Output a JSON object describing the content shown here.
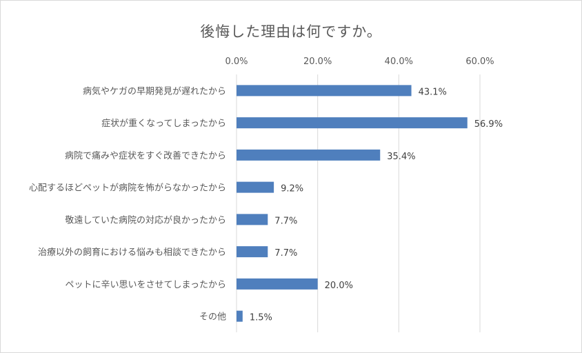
{
  "chart_data": {
    "type": "bar",
    "orientation": "horizontal",
    "title": "後悔した理由は何ですか。",
    "categories": [
      "病気やケガの早期発見が遅れたから",
      "症状が重くなってしまったから",
      "病院で痛みや症状をすぐ改善できたから",
      "心配するほどペットが病院を怖がらなかったから",
      "敬遠していた病院の対応が良かったから",
      "治療以外の飼育における悩みも相談できたから",
      "ペットに辛い思いをさせてしまったから",
      "その他"
    ],
    "values": [
      43.1,
      56.9,
      35.4,
      9.2,
      7.7,
      7.7,
      20.0,
      1.5
    ],
    "value_labels": [
      "43.1%",
      "56.9%",
      "35.4%",
      "9.2%",
      "7.7%",
      "7.7%",
      "20.0%",
      "1.5%"
    ],
    "xlim": [
      0,
      60
    ],
    "xticks": [
      0,
      20,
      40,
      60
    ],
    "xtick_labels": [
      "0.0%",
      "20.0%",
      "40.0%",
      "60.0%"
    ],
    "xaxis_position": "top",
    "grid": true,
    "legend": "none",
    "colors": {
      "bar": "#4f7fbd",
      "grid": "#d9d9d9",
      "text": "#595959"
    }
  }
}
